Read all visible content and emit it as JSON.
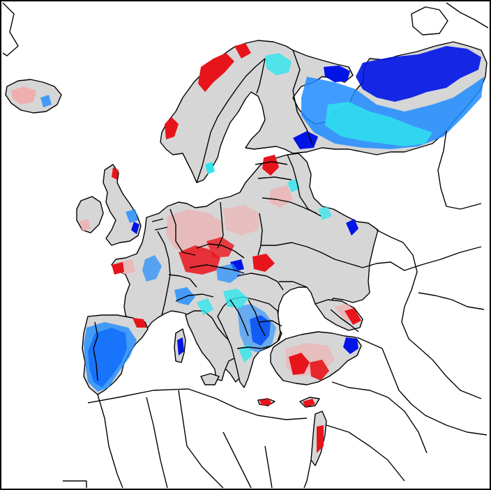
{
  "map": {
    "type": "choropleth-anomaly-map",
    "region": "Europe",
    "legend": null,
    "title": "",
    "colors": {
      "land_no_signal": "#d6d6d6",
      "outside_domain": "#ffffff",
      "strong_positive": "#e8141b",
      "weak_positive": "#f6a5a5",
      "weak_negative": "#2ee6ee",
      "moderate_negative": "#1e8cff",
      "strong_negative": "#0014e6",
      "border": "#000000"
    },
    "categories": [
      "strong_positive",
      "weak_positive",
      "weak_negative",
      "moderate_negative",
      "strong_negative"
    ]
  }
}
